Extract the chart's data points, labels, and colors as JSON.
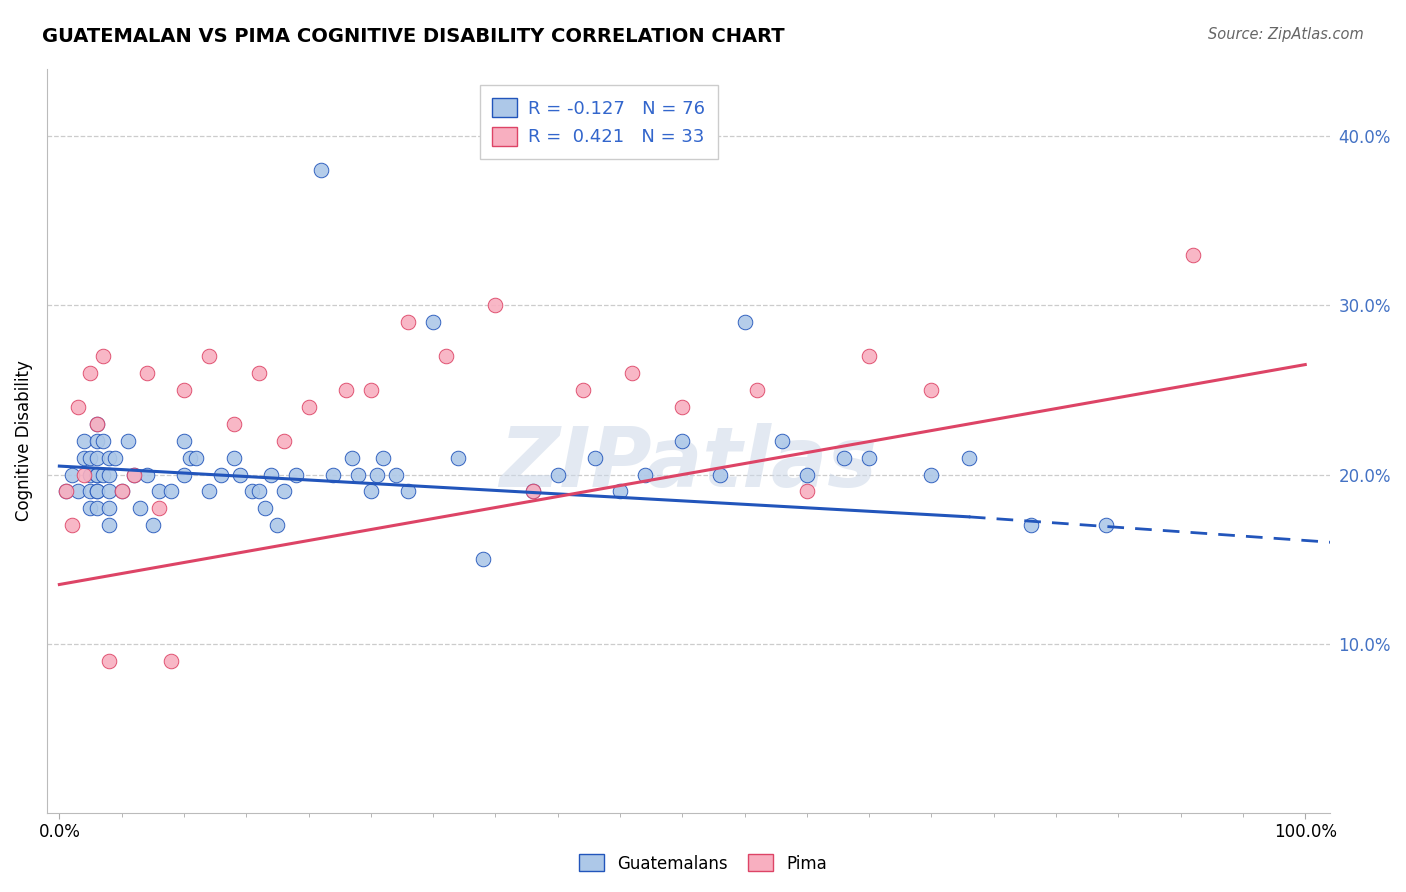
{
  "title": "GUATEMALAN VS PIMA COGNITIVE DISABILITY CORRELATION CHART",
  "source": "Source: ZipAtlas.com",
  "ylabel": "Cognitive Disability",
  "legend_guatemalans": "Guatemalans",
  "legend_pima": "Pima",
  "r_guatemalan": -0.127,
  "n_guatemalan": 76,
  "r_pima": 0.421,
  "n_pima": 33,
  "guatemalan_color": "#adc8e8",
  "pima_color": "#f8afc0",
  "line_guatemalan_color": "#2255bb",
  "line_pima_color": "#dd4466",
  "watermark": "ZIPatlas",
  "xlim": [
    -0.01,
    1.02
  ],
  "ylim": [
    0.0,
    0.44
  ],
  "yticks": [
    0.1,
    0.2,
    0.3,
    0.4
  ],
  "guatemalan_x": [
    0.005,
    0.01,
    0.015,
    0.02,
    0.02,
    0.025,
    0.025,
    0.025,
    0.025,
    0.03,
    0.03,
    0.03,
    0.03,
    0.03,
    0.03,
    0.03,
    0.03,
    0.035,
    0.035,
    0.04,
    0.04,
    0.04,
    0.04,
    0.04,
    0.045,
    0.05,
    0.055,
    0.06,
    0.065,
    0.07,
    0.075,
    0.08,
    0.09,
    0.1,
    0.1,
    0.105,
    0.11,
    0.12,
    0.13,
    0.14,
    0.145,
    0.155,
    0.16,
    0.165,
    0.17,
    0.175,
    0.18,
    0.19,
    0.21,
    0.22,
    0.235,
    0.24,
    0.25,
    0.255,
    0.26,
    0.27,
    0.28,
    0.3,
    0.32,
    0.34,
    0.38,
    0.4,
    0.43,
    0.45,
    0.47,
    0.5,
    0.53,
    0.55,
    0.58,
    0.6,
    0.63,
    0.65,
    0.7,
    0.73,
    0.78,
    0.84
  ],
  "guatemalan_y": [
    0.19,
    0.2,
    0.19,
    0.22,
    0.21,
    0.21,
    0.2,
    0.19,
    0.18,
    0.23,
    0.22,
    0.21,
    0.2,
    0.2,
    0.19,
    0.19,
    0.18,
    0.22,
    0.2,
    0.21,
    0.2,
    0.19,
    0.18,
    0.17,
    0.21,
    0.19,
    0.22,
    0.2,
    0.18,
    0.2,
    0.17,
    0.19,
    0.19,
    0.22,
    0.2,
    0.21,
    0.21,
    0.19,
    0.2,
    0.21,
    0.2,
    0.19,
    0.19,
    0.18,
    0.2,
    0.17,
    0.19,
    0.2,
    0.38,
    0.2,
    0.21,
    0.2,
    0.19,
    0.2,
    0.21,
    0.2,
    0.19,
    0.29,
    0.21,
    0.15,
    0.19,
    0.2,
    0.21,
    0.19,
    0.2,
    0.22,
    0.2,
    0.29,
    0.22,
    0.2,
    0.21,
    0.21,
    0.2,
    0.21,
    0.17,
    0.17
  ],
  "pima_x": [
    0.005,
    0.01,
    0.015,
    0.02,
    0.025,
    0.03,
    0.035,
    0.04,
    0.05,
    0.06,
    0.07,
    0.08,
    0.09,
    0.1,
    0.12,
    0.14,
    0.16,
    0.18,
    0.2,
    0.23,
    0.25,
    0.28,
    0.31,
    0.35,
    0.38,
    0.42,
    0.46,
    0.5,
    0.56,
    0.6,
    0.65,
    0.7,
    0.91
  ],
  "pima_y": [
    0.19,
    0.17,
    0.24,
    0.2,
    0.26,
    0.23,
    0.27,
    0.09,
    0.19,
    0.2,
    0.26,
    0.18,
    0.09,
    0.25,
    0.27,
    0.23,
    0.26,
    0.22,
    0.24,
    0.25,
    0.25,
    0.29,
    0.27,
    0.3,
    0.19,
    0.25,
    0.26,
    0.24,
    0.25,
    0.19,
    0.27,
    0.25,
    0.33
  ],
  "line_g_x0": 0.0,
  "line_g_x_solid_end": 0.73,
  "line_g_x1": 1.02,
  "line_g_y0": 0.205,
  "line_g_y_solid_end": 0.175,
  "line_g_y1": 0.16,
  "line_p_x0": 0.0,
  "line_p_x1": 1.0,
  "line_p_y0": 0.135,
  "line_p_y1": 0.265
}
